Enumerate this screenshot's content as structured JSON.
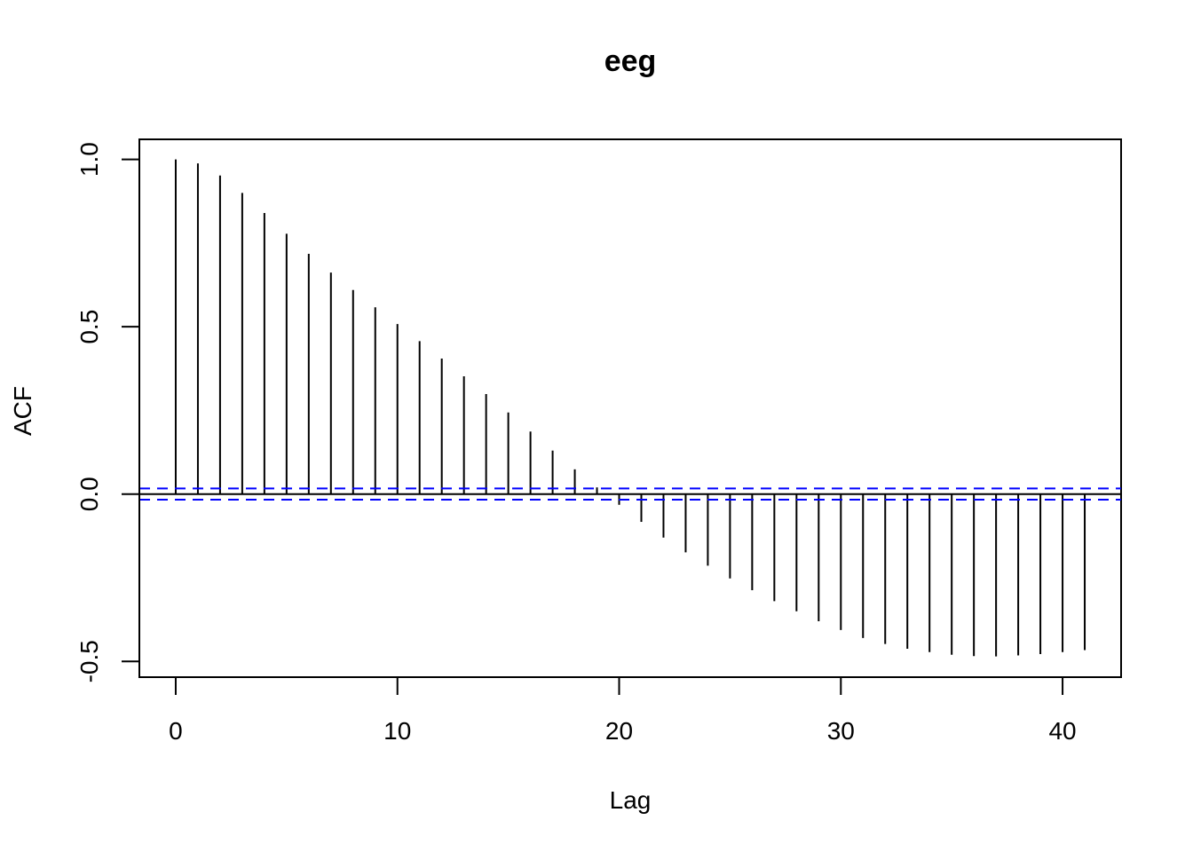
{
  "chart_data": {
    "type": "bar",
    "title": "eeg",
    "xlabel": "Lag",
    "ylabel": "ACF",
    "x": [
      0,
      1,
      2,
      3,
      4,
      5,
      6,
      7,
      8,
      9,
      10,
      11,
      12,
      13,
      14,
      15,
      16,
      17,
      18,
      19,
      20,
      21,
      22,
      23,
      24,
      25,
      26,
      27,
      28,
      29,
      30,
      31,
      32,
      33,
      34,
      35,
      36,
      37,
      38,
      39,
      40,
      41
    ],
    "values": [
      1.0,
      0.988,
      0.952,
      0.9,
      0.84,
      0.778,
      0.718,
      0.662,
      0.61,
      0.558,
      0.508,
      0.457,
      0.405,
      0.352,
      0.299,
      0.244,
      0.187,
      0.13,
      0.074,
      0.02,
      -0.032,
      -0.083,
      -0.13,
      -0.174,
      -0.214,
      -0.252,
      -0.287,
      -0.32,
      -0.35,
      -0.38,
      -0.406,
      -0.43,
      -0.448,
      -0.462,
      -0.472,
      -0.48,
      -0.484,
      -0.485,
      -0.482,
      -0.478,
      -0.472,
      -0.466
    ],
    "confidence_bounds": [
      0.0168,
      -0.0168
    ],
    "xlim": [
      -1.64,
      42.64
    ],
    "ylim": [
      -0.547,
      1.06
    ],
    "x_ticks": [
      0,
      10,
      20,
      30,
      40
    ],
    "x_tick_labels": [
      "0",
      "10",
      "20",
      "30",
      "40"
    ],
    "y_ticks": [
      -0.5,
      0.0,
      0.5,
      1.0
    ],
    "y_tick_labels": [
      "-0.5",
      "0.0",
      "0.5",
      "1.0"
    ],
    "grid": false,
    "colors": {
      "bars": "#000000",
      "zero_line": "#000000",
      "confidence": "#0000ff"
    }
  }
}
